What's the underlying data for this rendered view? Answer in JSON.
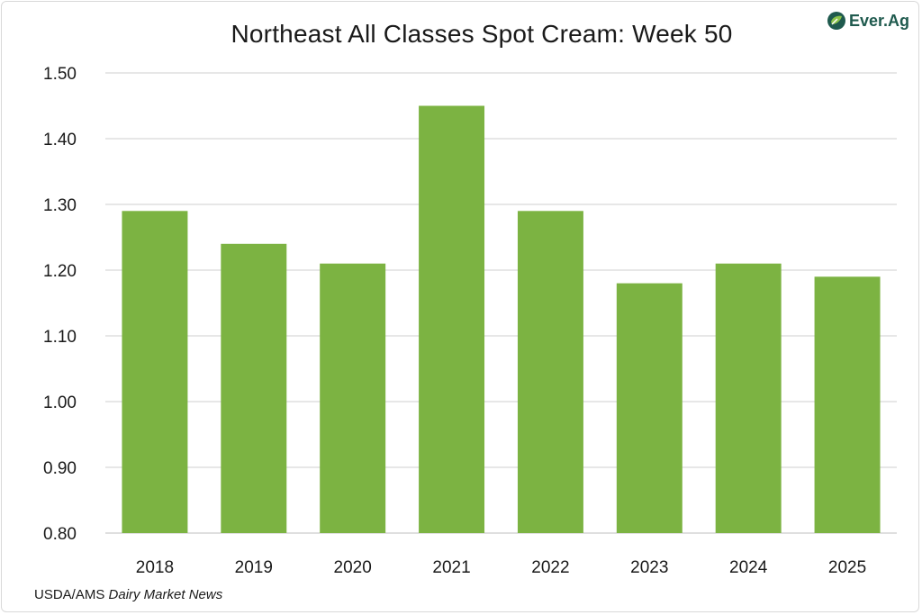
{
  "header": {
    "title": "Northeast All Classes Spot Cream: Week 50",
    "logo_text": "Ever.Ag",
    "logo_icon": "ever-ag-leaf-icon"
  },
  "footer": {
    "source_prefix": "USDA/AMS ",
    "source_italic": "Dairy Market News"
  },
  "colors": {
    "bar": "#7cb342",
    "grid": "#cfcfcf",
    "logo": "#1f5a4e"
  },
  "chart_data": {
    "type": "bar",
    "title": "Northeast All Classes Spot Cream: Week 50",
    "xlabel": "",
    "ylabel": "",
    "categories": [
      "2018",
      "2019",
      "2020",
      "2021",
      "2022",
      "2023",
      "2024",
      "2025"
    ],
    "values": [
      1.29,
      1.24,
      1.21,
      1.45,
      1.29,
      1.18,
      1.21,
      1.19
    ],
    "ylim": [
      0.8,
      1.5
    ],
    "yticks": [
      "0.80",
      "0.90",
      "1.00",
      "1.10",
      "1.20",
      "1.30",
      "1.40",
      "1.50"
    ],
    "grid": true,
    "legend": "none"
  }
}
